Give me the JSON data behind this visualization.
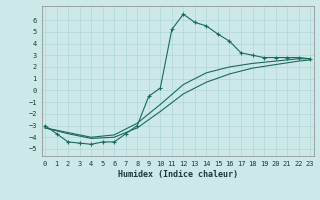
{
  "xlabel": "Humidex (Indice chaleur)",
  "bg_color": "#cde8e8",
  "grid_color_minor": "#b0d8d8",
  "grid_color_major": "#88c0c0",
  "line_color": "#1a6a5a",
  "x_ticks": [
    0,
    1,
    2,
    3,
    4,
    5,
    6,
    7,
    8,
    9,
    10,
    11,
    12,
    13,
    14,
    15,
    16,
    17,
    18,
    19,
    20,
    21,
    22,
    23
  ],
  "y_ticks": [
    -5,
    -4,
    -3,
    -2,
    -1,
    0,
    1,
    2,
    3,
    4,
    5,
    6
  ],
  "xlim": [
    -0.3,
    23.3
  ],
  "ylim": [
    -5.6,
    7.2
  ],
  "curve1_x": [
    0,
    1,
    2,
    3,
    4,
    5,
    6,
    7,
    8,
    9,
    10,
    11,
    12,
    13,
    14,
    15,
    16,
    17,
    18,
    19,
    20,
    21,
    22,
    23
  ],
  "curve1_y": [
    -3.0,
    -3.7,
    -4.4,
    -4.5,
    -4.6,
    -4.4,
    -4.4,
    -3.7,
    -3.0,
    -0.5,
    0.2,
    5.2,
    6.5,
    5.8,
    5.5,
    4.8,
    4.2,
    3.2,
    3.0,
    2.8,
    2.8,
    2.8,
    2.8,
    2.7
  ],
  "curve2_x": [
    0,
    2,
    4,
    6,
    8,
    10,
    12,
    14,
    16,
    18,
    20,
    22,
    23
  ],
  "curve2_y": [
    -3.2,
    -3.6,
    -4.0,
    -3.8,
    -2.8,
    -1.2,
    0.5,
    1.5,
    2.0,
    2.3,
    2.5,
    2.7,
    2.7
  ],
  "curve3_x": [
    0,
    2,
    4,
    6,
    8,
    10,
    12,
    14,
    16,
    18,
    20,
    22,
    23
  ],
  "curve3_y": [
    -3.2,
    -3.7,
    -4.1,
    -4.0,
    -3.2,
    -1.8,
    -0.3,
    0.7,
    1.4,
    1.9,
    2.2,
    2.5,
    2.6
  ],
  "tick_fontsize": 5.0,
  "xlabel_fontsize": 6.0
}
